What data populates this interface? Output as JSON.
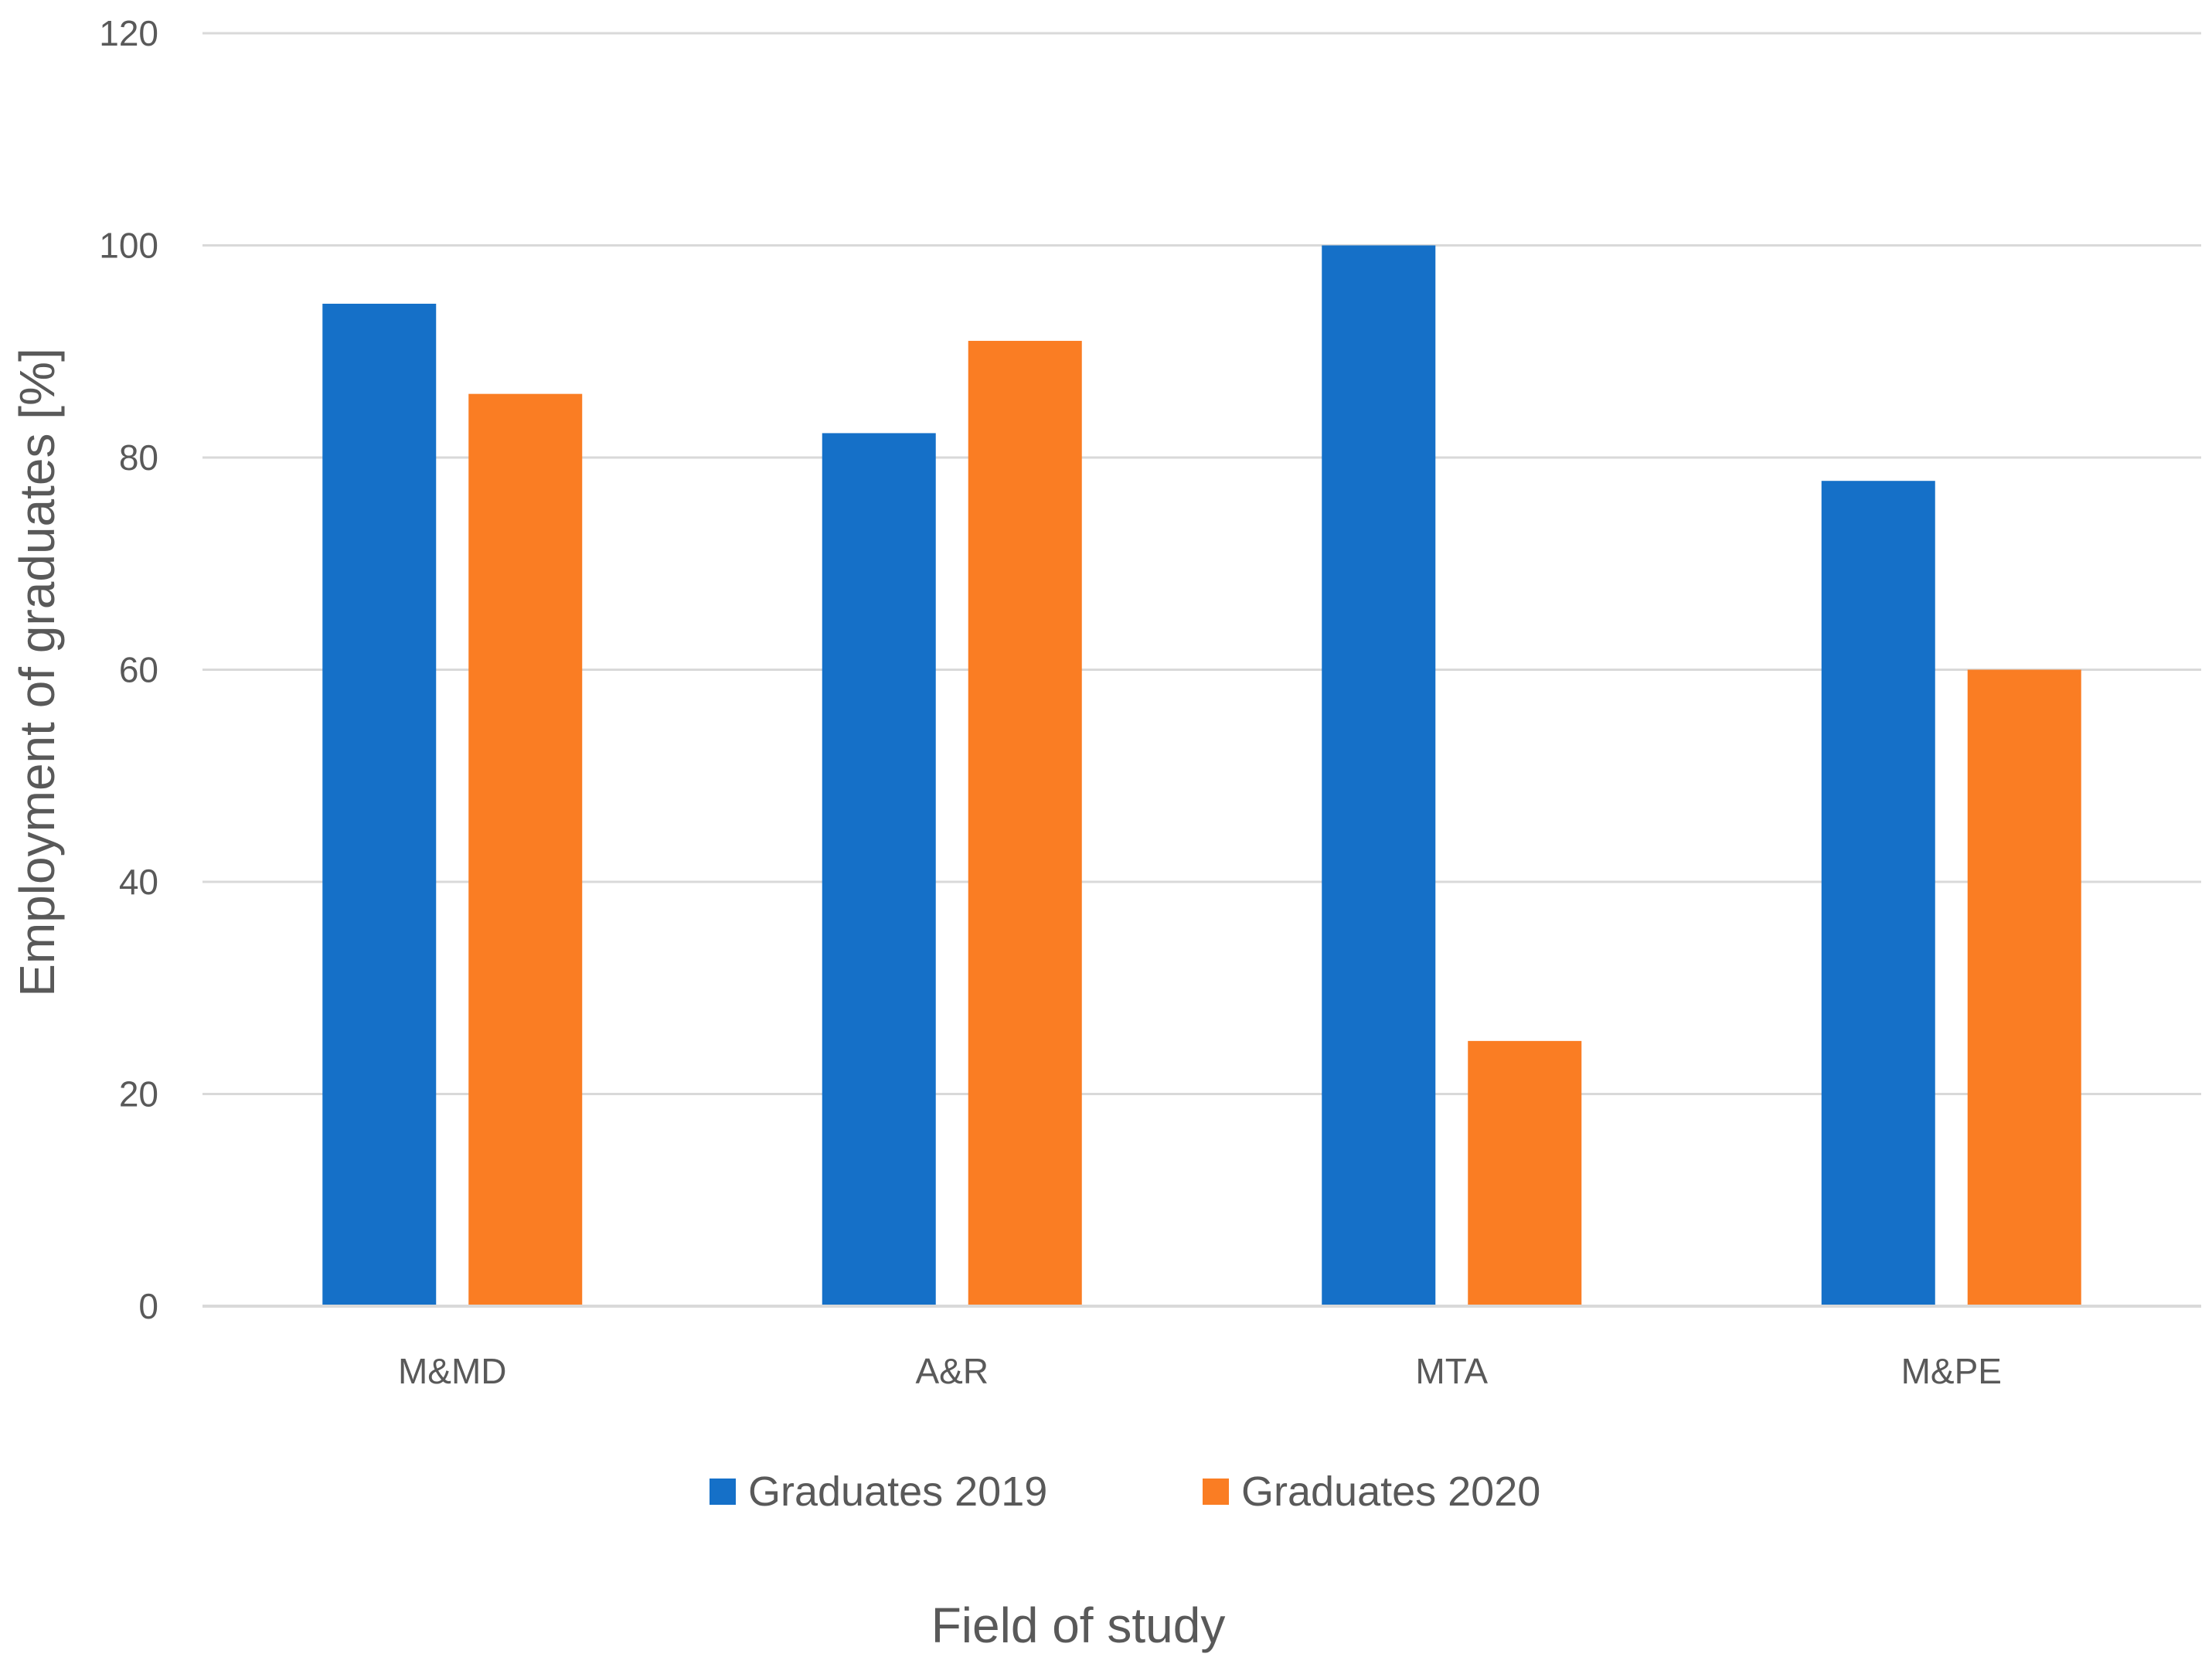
{
  "chart_data": {
    "type": "bar",
    "title": "",
    "xlabel": "Field of study",
    "ylabel": "Employment of graduates [%]",
    "categories": [
      "M&MD",
      "A&R",
      "MTA",
      "M&PE"
    ],
    "series": [
      {
        "name": "Graduates 2019",
        "color": "#1570C8",
        "values": [
          94.5,
          82.3,
          100,
          77.8
        ]
      },
      {
        "name": "Graduates 2020",
        "color": "#FA7D23",
        "values": [
          86,
          91,
          25,
          60
        ]
      }
    ],
    "ylim": [
      0,
      120
    ],
    "yticks": [
      "0",
      "20",
      "40",
      "60",
      "80",
      "100",
      "120"
    ],
    "grid": true,
    "legend": "bottom"
  }
}
